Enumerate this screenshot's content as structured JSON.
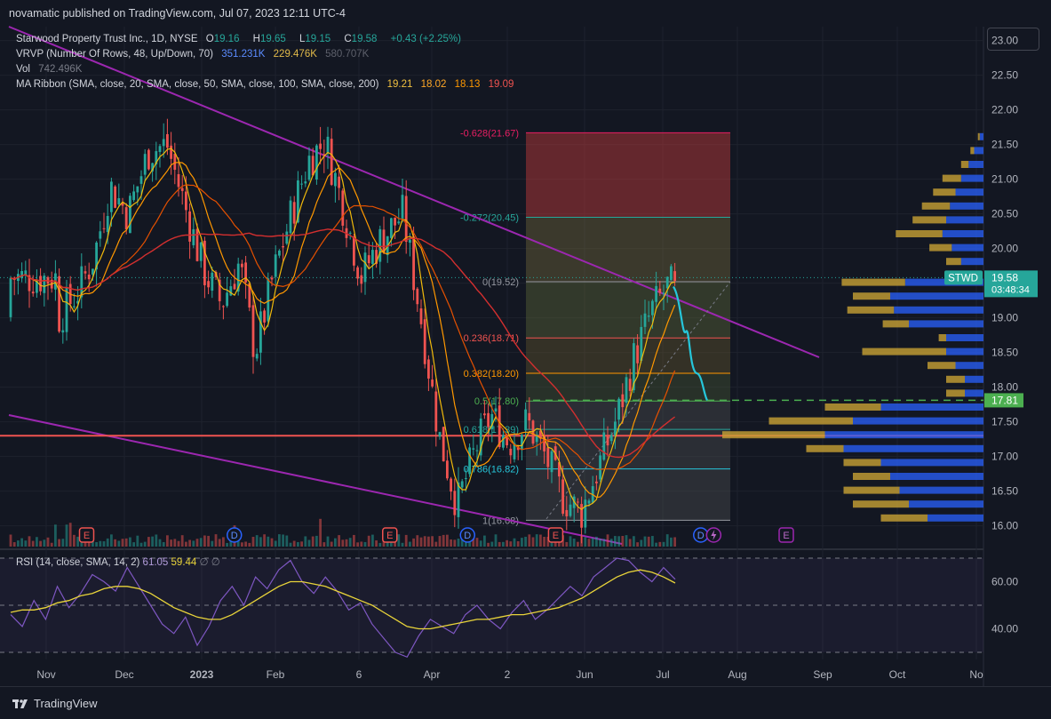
{
  "header": {
    "publisher_text": "novamatic published on TradingView.com, Jul 07, 2023 12:11 UTC-4"
  },
  "legend": {
    "symbol": "Starwood Property Trust Inc., 1D, NYSE",
    "o_label": "O",
    "o_value": "19.16",
    "h_label": "H",
    "h_value": "19.65",
    "l_label": "L",
    "l_value": "19.15",
    "c_label": "C",
    "c_value": "19.58",
    "change": "+0.43 (+2.25%)",
    "vrvp_label": "VRVP (Number Of Rows, 48, Up/Down, 70)",
    "vrvp_up": "351.231K",
    "vrvp_down": "229.476K",
    "vrvp_total": "580.707K",
    "vol_label": "Vol",
    "vol_value": "742.496K",
    "ma_label": "MA Ribbon (SMA, close, 20, SMA, close, 50, SMA, close, 100, SMA, close, 200)",
    "ma20": "19.21",
    "ma50": "18.02",
    "ma100": "18.13",
    "ma200": "19.09"
  },
  "rsi_legend": {
    "label": "RSI (14, close, SMA, 14, 2)",
    "rsi": "61.05",
    "rsi_ma": "59.44",
    "flags": "∅ ∅"
  },
  "price_badges": {
    "symbol": "STWD",
    "price": "19.58",
    "countdown": "03:48:34",
    "dashed_level": "17.81"
  },
  "footer": {
    "brand": "TradingView"
  },
  "colors": {
    "background": "#131722",
    "up": "#26a69a",
    "down": "#ef5350",
    "trendline": "#9c27b0",
    "ma20": "#f0b90b",
    "ma50": "#ff9800",
    "ma100": "#e65100",
    "ma200": "#d32f2f",
    "rsi": "#7e57c2",
    "rsi_ma": "#e9d43a",
    "vp_up": "#2962ff",
    "vp_down": "#c8a135"
  },
  "chart_data": [
    {
      "type": "candlestick",
      "title": "Starwood Property Trust Inc., 1D, NYSE",
      "x_ticks": [
        "Nov",
        "Dec",
        "2023",
        "Feb",
        "6",
        "Apr",
        "2",
        "Jun",
        "Jul",
        "Aug",
        "Sep",
        "Oct",
        "No"
      ],
      "y_ticks": [
        "16.00",
        "16.50",
        "17.00",
        "17.50",
        "18.00",
        "18.50",
        "19.00",
        "19.50",
        "20.00",
        "20.50",
        "21.00",
        "21.50",
        "22.00",
        "22.50",
        "23.00"
      ],
      "ylim": [
        15.7,
        23.2
      ],
      "ohlc_path": [
        [
          "Oct-20",
          19.0
        ],
        [
          "Oct-28",
          19.4
        ],
        [
          "Nov-04",
          19.9
        ],
        [
          "Nov-10",
          20.9
        ],
        [
          "Nov-17",
          20.5
        ],
        [
          "Nov-25",
          21.4
        ],
        [
          "Dec-02",
          21.5
        ],
        [
          "Dec-09",
          20.6
        ],
        [
          "Dec-16",
          19.7
        ],
        [
          "Dec-23",
          19.2
        ],
        [
          "Dec-30",
          19.8
        ],
        [
          "Jan-06",
          18.5
        ],
        [
          "Jan-13",
          19.6
        ],
        [
          "Jan-20",
          20.5
        ],
        [
          "Jan-27",
          21.3
        ],
        [
          "Feb-03",
          21.55
        ],
        [
          "Feb-10",
          20.6
        ],
        [
          "Feb-17",
          19.6
        ],
        [
          "Feb-24",
          20.1
        ],
        [
          "Mar-03",
          20.5
        ],
        [
          "Mar-10",
          19.0
        ],
        [
          "Mar-17",
          17.3
        ],
        [
          "Mar-24",
          16.3
        ],
        [
          "Mar-31",
          17.1
        ],
        [
          "Apr-07",
          17.6
        ],
        [
          "Apr-14",
          17.2
        ],
        [
          "Apr-21",
          17.5
        ],
        [
          "Apr-28",
          17.0
        ],
        [
          "May-05",
          16.4
        ],
        [
          "May-12",
          16.2
        ],
        [
          "May-19",
          16.9
        ],
        [
          "May-26",
          17.6
        ],
        [
          "Jun-02",
          18.4
        ],
        [
          "Jun-09",
          19.1
        ],
        [
          "Jun-16",
          19.5
        ],
        [
          "Jun-23",
          19.0
        ],
        [
          "Jun-30",
          19.4
        ],
        [
          "Jul-07",
          19.58
        ]
      ],
      "last": {
        "open": 19.16,
        "high": 19.65,
        "low": 19.15,
        "close": 19.58,
        "change": "+0.43 (+2.25%)"
      },
      "fib_levels": [
        {
          "label": "-0.628(21.67)",
          "ratio": -0.628,
          "price": 21.67
        },
        {
          "label": "-0.272(20.45)",
          "ratio": -0.272,
          "price": 20.45
        },
        {
          "label": "0(19.52)",
          "ratio": 0,
          "price": 19.52
        },
        {
          "label": "0.236(18.71)",
          "ratio": 0.236,
          "price": 18.71
        },
        {
          "label": "0.382(18.20)",
          "ratio": 0.382,
          "price": 18.2
        },
        {
          "label": "0.5(17.80)",
          "ratio": 0.5,
          "price": 17.8
        },
        {
          "label": "0.618(17.39)",
          "ratio": 0.618,
          "price": 17.39
        },
        {
          "label": "0.786(16.82)",
          "ratio": 0.786,
          "price": 16.82
        },
        {
          "label": "1(16.08)",
          "ratio": 1,
          "price": 16.08
        }
      ],
      "horizontal_lines": [
        {
          "price": 17.3,
          "color": "#ef5350"
        },
        {
          "price": 17.81,
          "color": "#4caf50",
          "style": "dashed"
        }
      ],
      "projection": [
        [
          19.5,
          "Jul-07"
        ],
        [
          18.9,
          "Jul-10"
        ],
        [
          18.2,
          "Jul-14"
        ],
        [
          18.6,
          "Jul-18"
        ],
        [
          17.81,
          "Jul-24"
        ]
      ],
      "event_markers": [
        {
          "date": "Nov-01",
          "type": "E"
        },
        {
          "date": "Dec-28",
          "type": "D"
        },
        {
          "date": "Feb-28",
          "type": "E"
        },
        {
          "date": "Mar-28",
          "type": "D"
        },
        {
          "date": "May-02",
          "type": "E"
        },
        {
          "date": "Jun-28",
          "type": "D"
        },
        {
          "date": "Jul-03",
          "type": "split"
        },
        {
          "date": "Aug-01",
          "type": "E"
        }
      ],
      "volume_profile": {
        "rows": [
          {
            "price": 21.6,
            "up": 0.02,
            "down": 0.01
          },
          {
            "price": 21.4,
            "up": 0.05,
            "down": 0.02
          },
          {
            "price": 21.2,
            "up": 0.08,
            "down": 0.04
          },
          {
            "price": 21.0,
            "up": 0.12,
            "down": 0.1
          },
          {
            "price": 20.8,
            "up": 0.15,
            "down": 0.12
          },
          {
            "price": 20.6,
            "up": 0.18,
            "down": 0.15
          },
          {
            "price": 20.4,
            "up": 0.2,
            "down": 0.18
          },
          {
            "price": 20.2,
            "up": 0.22,
            "down": 0.25
          },
          {
            "price": 20.0,
            "up": 0.17,
            "down": 0.12
          },
          {
            "price": 19.8,
            "up": 0.12,
            "down": 0.08
          },
          {
            "price": 19.5,
            "up": 0.42,
            "down": 0.34
          },
          {
            "price": 19.3,
            "up": 0.5,
            "down": 0.2
          },
          {
            "price": 19.1,
            "up": 0.48,
            "down": 0.25
          },
          {
            "price": 18.9,
            "up": 0.4,
            "down": 0.14
          },
          {
            "price": 18.7,
            "up": 0.2,
            "down": 0.04
          },
          {
            "price": 18.5,
            "up": 0.2,
            "down": 0.45
          },
          {
            "price": 18.3,
            "up": 0.15,
            "down": 0.15
          },
          {
            "price": 18.1,
            "up": 0.1,
            "down": 0.1
          },
          {
            "price": 17.9,
            "up": 0.1,
            "down": 0.1
          },
          {
            "price": 17.7,
            "up": 0.55,
            "down": 0.3
          },
          {
            "price": 17.5,
            "up": 0.7,
            "down": 0.45
          },
          {
            "price": 17.3,
            "up": 0.85,
            "down": 0.55
          },
          {
            "price": 17.1,
            "up": 0.75,
            "down": 0.2
          },
          {
            "price": 16.9,
            "up": 0.55,
            "down": 0.2
          },
          {
            "price": 16.7,
            "up": 0.5,
            "down": 0.2
          },
          {
            "price": 16.5,
            "up": 0.45,
            "down": 0.3
          },
          {
            "price": 16.3,
            "up": 0.4,
            "down": 0.3
          },
          {
            "price": 16.1,
            "up": 0.3,
            "down": 0.25
          }
        ]
      }
    },
    {
      "type": "line",
      "title": "RSI (14, close, SMA, 14, 2)",
      "y_ticks": [
        "40.00",
        "60.00"
      ],
      "ylim": [
        27,
        73
      ],
      "band": [
        30,
        70
      ],
      "series": [
        {
          "name": "RSI",
          "values": [
            46,
            41,
            52,
            44,
            58,
            49,
            55,
            63,
            60,
            56,
            66,
            58,
            50,
            42,
            38,
            45,
            33,
            41,
            52,
            58,
            50,
            62,
            57,
            65,
            69,
            60,
            55,
            62,
            56,
            48,
            51,
            42,
            36,
            30,
            28,
            37,
            44,
            41,
            38,
            46,
            50,
            44,
            40,
            47,
            52,
            44,
            48,
            53,
            58,
            54,
            62,
            66,
            70,
            69,
            64,
            60,
            66,
            61
          ]
        },
        {
          "name": "SMA",
          "values": [
            47,
            48,
            48,
            49,
            51,
            52,
            54,
            55,
            57,
            58,
            58,
            57,
            55,
            52,
            49,
            47,
            45,
            44,
            44,
            46,
            49,
            52,
            55,
            58,
            60,
            60,
            59,
            58,
            56,
            54,
            52,
            50,
            47,
            44,
            41,
            40,
            40,
            41,
            42,
            43,
            44,
            44,
            45,
            46,
            46,
            47,
            48,
            49,
            51,
            53,
            56,
            59,
            62,
            64,
            65,
            64,
            62,
            59.44
          ]
        }
      ]
    }
  ]
}
